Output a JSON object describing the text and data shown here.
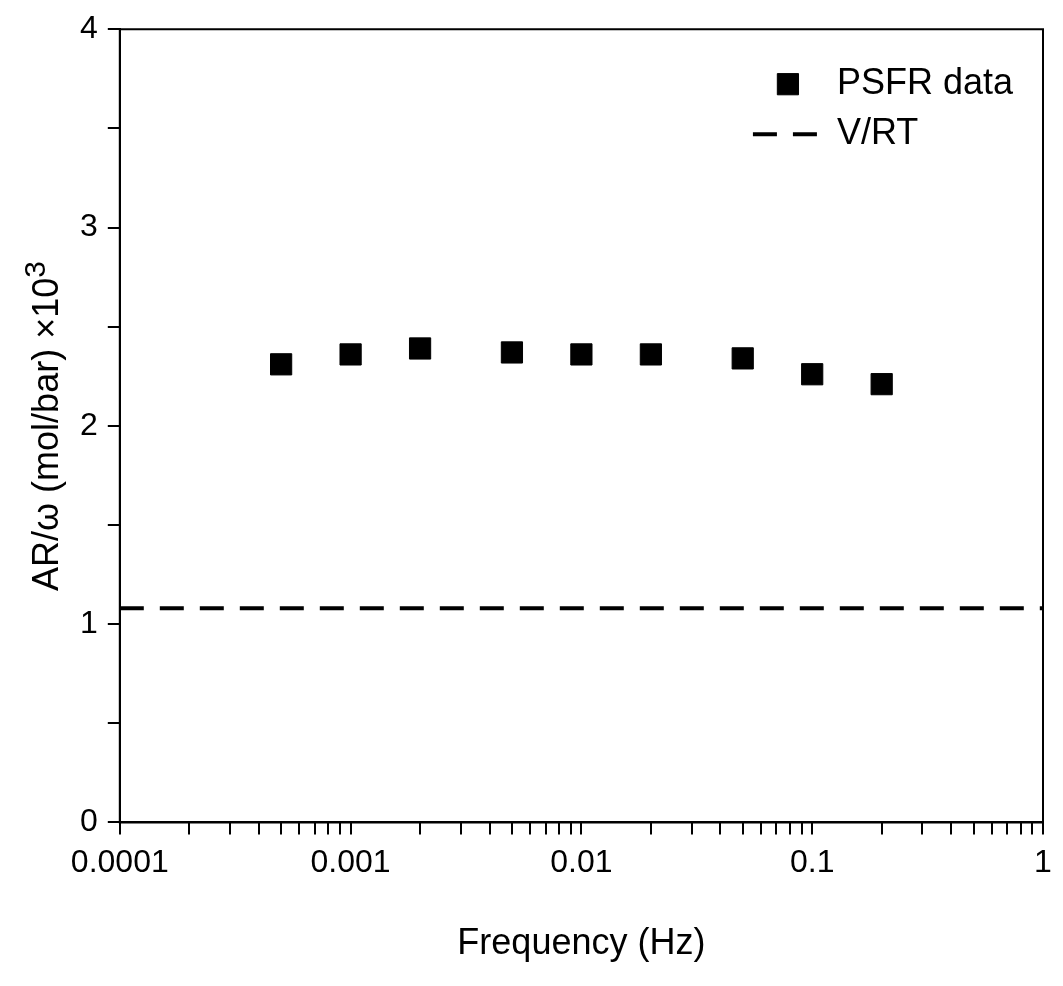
{
  "chart_data": {
    "type": "scatter",
    "xlabel": "Frequency (Hz)",
    "ylabel": "AR/ω (mol/bar) ×10$^{3}$",
    "log": "x",
    "xlim": [
      0.0001,
      1
    ],
    "ylim": [
      0,
      4
    ],
    "xticks": [
      0.0001,
      {
        "value": 0.0002,
        "label": null
      },
      {
        "value": 0.0003,
        "label": null
      },
      {
        "value": 0.0004,
        "label": null
      },
      {
        "value": 0.0005,
        "label": null
      },
      {
        "value": 0.0006,
        "label": null
      },
      {
        "value": 0.0007,
        "label": null
      },
      {
        "value": 0.0008,
        "label": null
      },
      {
        "value": 0.0009,
        "label": null
      },
      0.001,
      {
        "value": 0.002,
        "label": null
      },
      {
        "value": 0.003,
        "label": null
      },
      {
        "value": 0.004,
        "label": null
      },
      {
        "value": 0.005,
        "label": null
      },
      {
        "value": 0.006,
        "label": null
      },
      {
        "value": 0.007,
        "label": null
      },
      {
        "value": 0.008,
        "label": null
      },
      {
        "value": 0.009,
        "label": null
      },
      0.01,
      {
        "value": 0.02,
        "label": null
      },
      {
        "value": 0.03,
        "label": null
      },
      {
        "value": 0.04,
        "label": null
      },
      {
        "value": 0.05,
        "label": null
      },
      {
        "value": 0.06,
        "label": null
      },
      {
        "value": 0.07,
        "label": null
      },
      {
        "value": 0.08,
        "label": null
      },
      {
        "value": 0.09,
        "label": null
      },
      0.1,
      {
        "value": 0.2,
        "label": null
      },
      {
        "value": 0.3,
        "label": null
      },
      {
        "value": 0.4,
        "label": null
      },
      {
        "value": 0.5,
        "label": null
      },
      {
        "value": 0.6,
        "label": null
      },
      {
        "value": 0.7,
        "label": null
      },
      {
        "value": 0.8,
        "label": null
      },
      {
        "value": 0.9,
        "label": null
      },
      1
    ],
    "yticks": [
      0,
      {
        "value": 0.5,
        "label": null
      },
      1,
      {
        "value": 1.5,
        "label": null
      },
      2,
      {
        "value": 2.5,
        "label": null
      },
      3,
      {
        "value": 3.5,
        "label": null
      },
      4
    ],
    "grid": false,
    "legend": "top right",
    "series": [
      {
        "name": "PSFR data",
        "type": "scatter",
        "marker": "square",
        "color": "#000000",
        "x": [
          0.0005,
          0.001,
          0.002,
          0.005,
          0.01,
          0.02,
          0.05,
          0.1,
          0.2
        ],
        "values": [
          2.31,
          2.36,
          2.39,
          2.37,
          2.36,
          2.36,
          2.34,
          2.26,
          2.21
        ]
      },
      {
        "name": "V/RT",
        "type": "line",
        "marker": "none",
        "line_style": "dashed",
        "color": "#000000",
        "x": [
          0.0001,
          1
        ],
        "values": [
          1.08,
          1.08
        ]
      }
    ]
  }
}
